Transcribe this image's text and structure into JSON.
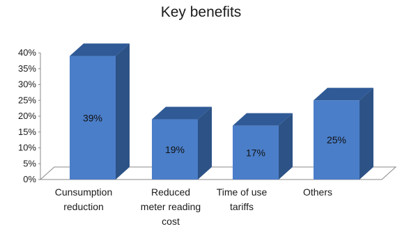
{
  "chart_data": {
    "type": "bar",
    "title": "Key benefits",
    "categories": [
      [
        "Cunsumption",
        "reduction"
      ],
      [
        "Reduced",
        "meter reading",
        "cost"
      ],
      [
        "Time of use",
        "tariffs"
      ],
      [
        "Others"
      ]
    ],
    "values": [
      39,
      19,
      17,
      25
    ],
    "data_labels": [
      "39%",
      "19%",
      "17%",
      "25%"
    ],
    "yticks": [
      "0%",
      "5%",
      "10%",
      "15%",
      "20%",
      "25%",
      "30%",
      "35%",
      "40%"
    ],
    "ylim": [
      0,
      40
    ],
    "grid": false,
    "legend": "none",
    "style": "3d",
    "colors": {
      "bar_front": "#4a7ec9",
      "bar_top": "#2f5a96",
      "bar_side": "#2d5286",
      "floor": "#ffffff",
      "axis": "#888888"
    }
  }
}
